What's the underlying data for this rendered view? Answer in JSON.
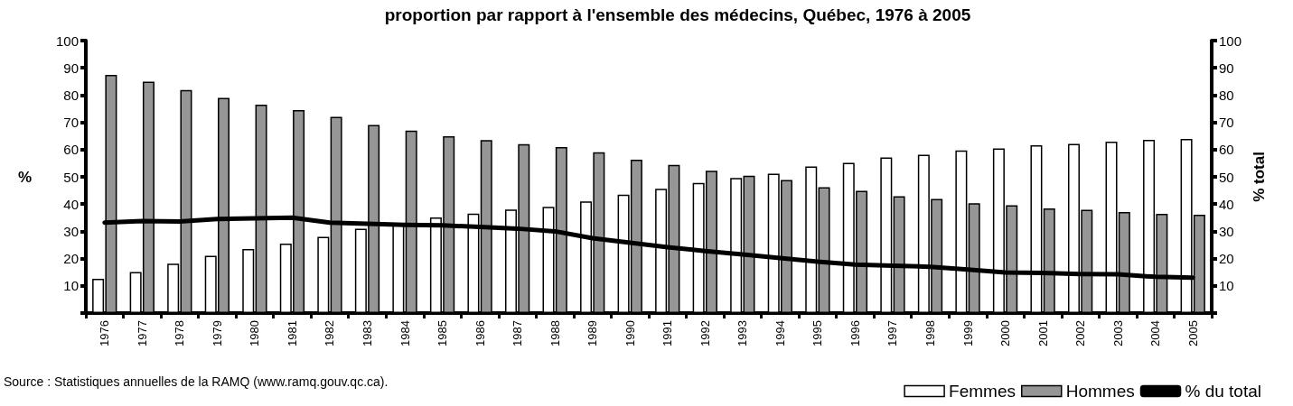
{
  "chart_data": {
    "type": "bar",
    "title": "proportion par rapport à l'ensemble des médecins, Québec, 1976 à 2005",
    "ylabel": "%",
    "y2label": "% total",
    "annotations": [
      "Source : Statistiques annuelles de la RAMQ (www.ramq.gouv.qc.ca)."
    ],
    "categories": [
      "1976",
      "1977",
      "1978",
      "1979",
      "1980",
      "1981",
      "1982",
      "1983",
      "1984",
      "1985",
      "1986",
      "1987",
      "1988",
      "1989",
      "1990",
      "1991",
      "1992",
      "1993",
      "1994",
      "1995",
      "1996",
      "1997",
      "1998",
      "1999",
      "2000",
      "2001",
      "2002",
      "2003",
      "2004",
      "2005"
    ],
    "series": [
      {
        "name": "Femmes",
        "color": "#ffffff",
        "values": [
          12.6,
          15.1,
          18.1,
          21,
          23.5,
          25.5,
          28,
          31,
          32.8,
          35.1,
          36.5,
          38,
          39,
          41,
          43.5,
          45.6,
          47.8,
          49.6,
          51.2,
          53.8,
          55.1,
          57.1,
          58.1,
          59.7,
          60.4,
          61.6,
          62.1,
          62.9,
          63.6,
          63.9
        ]
      },
      {
        "name": "Hommes",
        "color": "#969696",
        "values": [
          87.4,
          84.9,
          81.9,
          79,
          76.5,
          74.5,
          72,
          69,
          67,
          64.9,
          63.5,
          62,
          60.9,
          59,
          56.3,
          54.4,
          52.2,
          50.4,
          48.8,
          46.2,
          44.9,
          42.9,
          41.9,
          40.3,
          39.6,
          38.4,
          37.9,
          37.1,
          36.4,
          36.1
        ]
      },
      {
        "name": "% du total",
        "type": "line",
        "axis": "y2",
        "color": "#000000",
        "values": [
          33.2,
          33.8,
          33.6,
          34.5,
          34.8,
          35,
          33.2,
          32.8,
          32.4,
          32.2,
          31.6,
          31,
          30,
          27.5,
          25.8,
          24.2,
          22.8,
          21.5,
          20.2,
          18.9,
          17.8,
          17.4,
          17,
          16,
          14.9,
          14.7,
          14.3,
          14.2,
          13.3,
          13
        ]
      }
    ],
    "ylim": [
      0,
      100
    ],
    "yticks": [
      {
        "value": 0,
        "label": null
      },
      10,
      20,
      30,
      40,
      50,
      60,
      70,
      80,
      90,
      100
    ],
    "y2lim": [
      0,
      100
    ],
    "y2ticks": [
      {
        "value": 0,
        "label": null
      },
      10,
      20,
      30,
      40,
      50,
      60,
      70,
      80,
      90,
      100
    ],
    "grid": false,
    "legend": "bottom right",
    "marker": "none",
    "line_style": "solid"
  }
}
